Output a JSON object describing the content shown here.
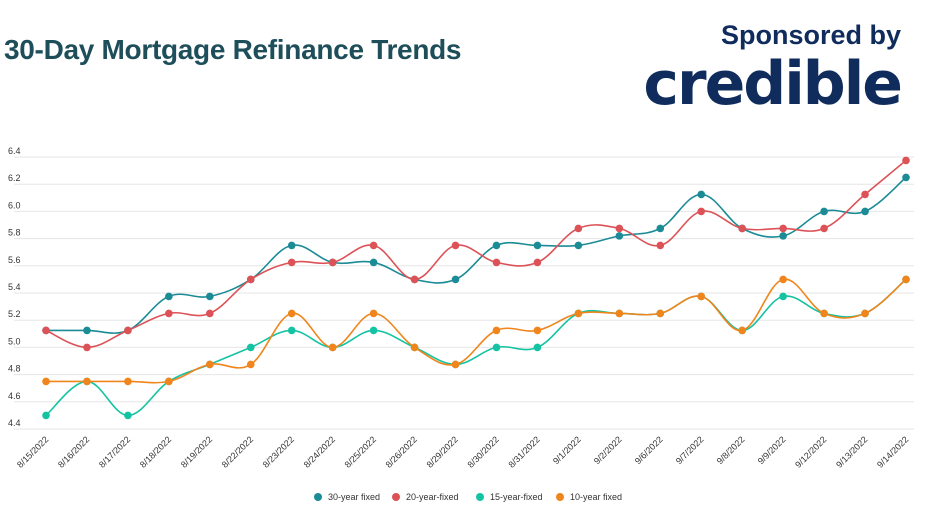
{
  "header": {
    "title": "30-Day Mortgage Refinance Trends",
    "sponsor_label": "Sponsored by",
    "sponsor_logo_text": "credible"
  },
  "chart_data": {
    "type": "line",
    "categories": [
      "8/15/2022",
      "8/16/2022",
      "8/17/2022",
      "8/18/2022",
      "8/19/2022",
      "8/22/2022",
      "8/23/2022",
      "8/24/2022",
      "8/25/2022",
      "8/26/2022",
      "8/29/2022",
      "8/30/2022",
      "8/31/2022",
      "9/1/2022",
      "9/2/2022",
      "9/6/2022",
      "9/7/2022",
      "9/8/2022",
      "9/9/2022",
      "9/12/2022",
      "9/13/2022",
      "9/14/2022"
    ],
    "yticks": [
      "4.4",
      "4.6",
      "4.8",
      "5.0",
      "5.2",
      "5.4",
      "5.6",
      "5.8",
      "6.0",
      "6.2",
      "6.4"
    ],
    "ylim": [
      4.4,
      6.4
    ],
    "grid": true,
    "legend_position": "bottom",
    "series": [
      {
        "name": "30-year fixed",
        "color": "#1b8b96",
        "values": [
          5.125,
          5.125,
          5.125,
          5.375,
          5.375,
          5.5,
          5.75,
          5.625,
          5.625,
          5.5,
          5.5,
          5.75,
          5.75,
          5.75,
          5.82,
          5.875,
          6.125,
          5.875,
          5.82,
          6.0,
          6.0,
          6.25
        ]
      },
      {
        "name": "20-year-fixed",
        "color": "#dc5257",
        "values": [
          5.125,
          5.0,
          5.125,
          5.25,
          5.25,
          5.5,
          5.625,
          5.625,
          5.75,
          5.5,
          5.75,
          5.625,
          5.625,
          5.875,
          5.875,
          5.75,
          6.0,
          5.875,
          5.875,
          5.875,
          6.125,
          6.375
        ]
      },
      {
        "name": "15-year-fixed",
        "color": "#14c3a2",
        "values": [
          4.5,
          4.75,
          4.5,
          4.75,
          4.875,
          5.0,
          5.125,
          5.0,
          5.125,
          5.0,
          4.875,
          5.0,
          5.0,
          5.25,
          5.25,
          5.25,
          5.375,
          5.125,
          5.375,
          5.25,
          5.25,
          5.5
        ]
      },
      {
        "name": "10-year fixed",
        "color": "#f0851c",
        "values": [
          4.75,
          4.75,
          4.75,
          4.75,
          4.875,
          4.875,
          5.25,
          5.0,
          5.25,
          5.0,
          4.875,
          5.125,
          5.125,
          5.25,
          5.25,
          5.25,
          5.375,
          5.125,
          5.5,
          5.25,
          5.25,
          5.5
        ]
      }
    ]
  },
  "colors": {
    "title": "#1d4e5a",
    "brand": "#0f2c5c",
    "grid": "#e6e6e6"
  }
}
